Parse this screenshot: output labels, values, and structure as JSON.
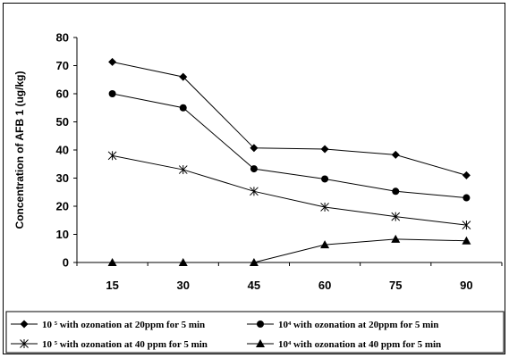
{
  "chart_data": {
    "type": "line",
    "title": "",
    "xlabel": "",
    "ylabel": "Concentration of AFB 1 (ug/kg)",
    "x": [
      15,
      30,
      45,
      60,
      75,
      90
    ],
    "x_tick_labels": [
      "15",
      "30",
      "45",
      "60",
      "75",
      "90"
    ],
    "ylim": [
      0,
      80
    ],
    "y_ticks": [
      0,
      10,
      20,
      30,
      40,
      50,
      60,
      70,
      80
    ],
    "grid": false,
    "legend_position": "bottom",
    "series": [
      {
        "name": "10 ⁵ with ozonation at 20ppm for 5 min",
        "marker": "diamond",
        "color": "#000000",
        "values": [
          71.3,
          66.0,
          40.7,
          40.3,
          38.3,
          31.0
        ]
      },
      {
        "name": "10⁴  with ozonation at 20ppm for 5 min",
        "marker": "circle",
        "color": "#000000",
        "values": [
          60.0,
          55.0,
          33.3,
          29.7,
          25.3,
          23.0
        ]
      },
      {
        "name": "10 ⁵  with ozonation at 40 ppm for 5 min",
        "marker": "asterisk",
        "color": "#000000",
        "values": [
          38.0,
          33.0,
          25.3,
          19.7,
          16.3,
          13.3
        ]
      },
      {
        "name": "10⁴  with ozonation at 40 ppm for 5 min",
        "marker": "triangle",
        "color": "#000000",
        "values": [
          0,
          0,
          0,
          6.3,
          8.3,
          7.7
        ]
      }
    ]
  }
}
